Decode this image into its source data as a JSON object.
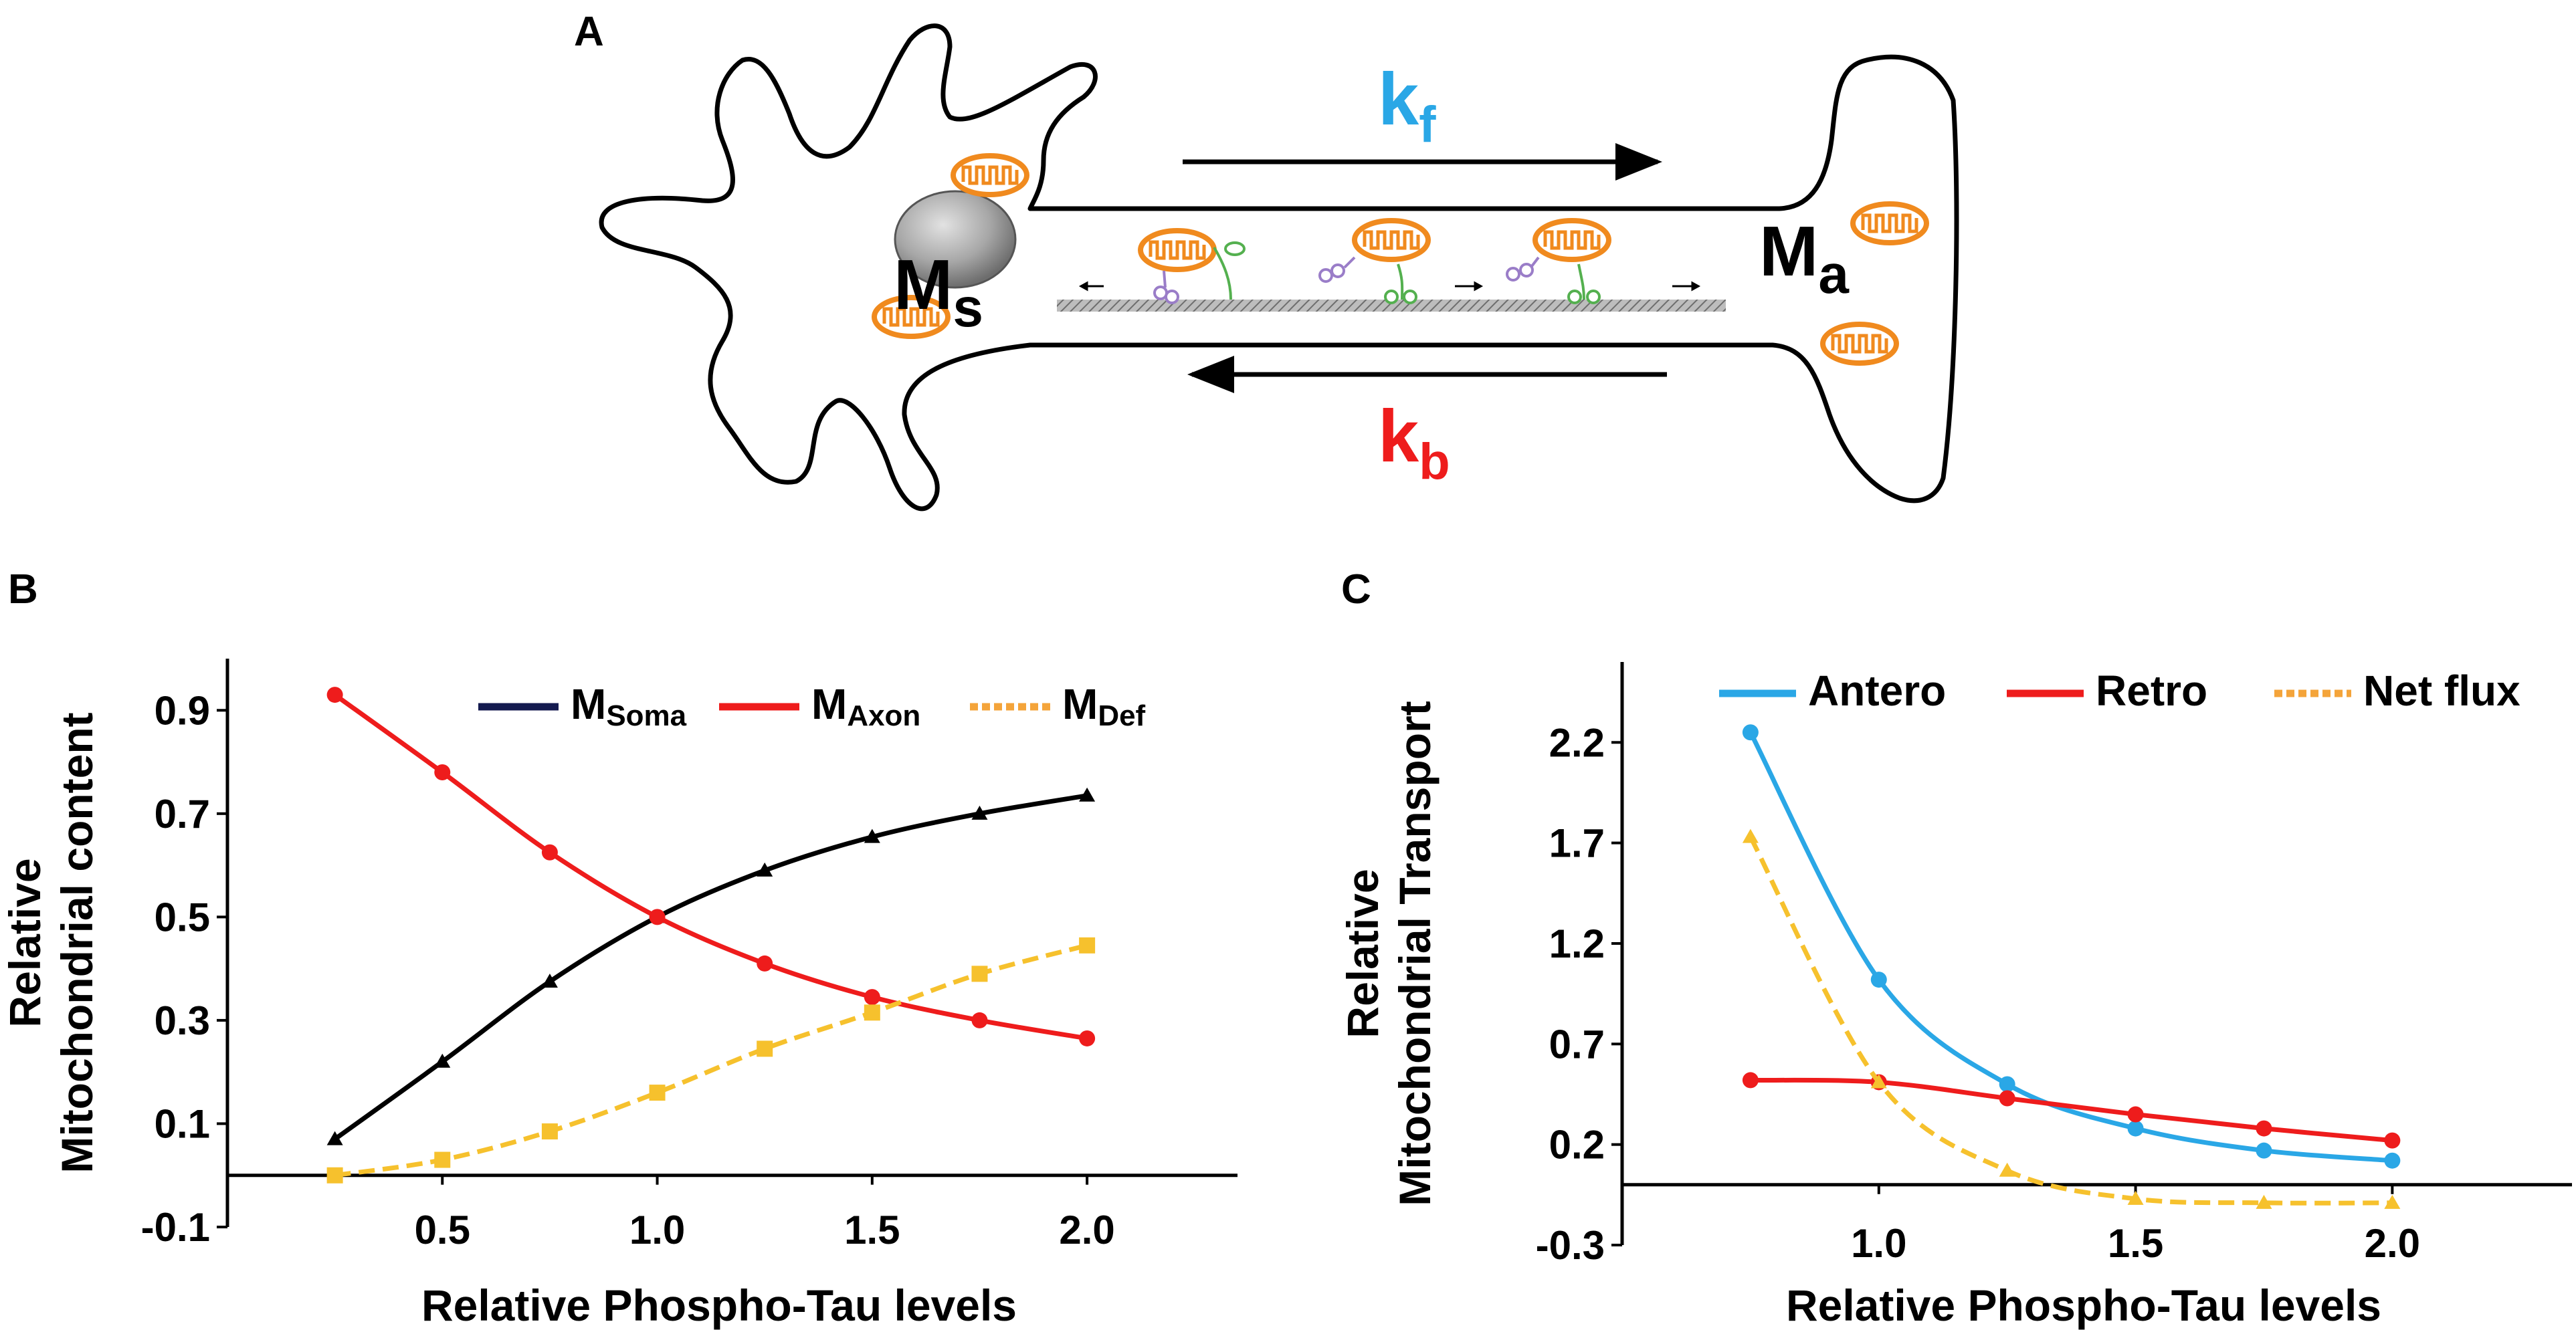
{
  "panels": {
    "a": {
      "letter": "A"
    },
    "b": {
      "letter": "B"
    },
    "c": {
      "letter": "C"
    }
  },
  "diagram": {
    "kf": {
      "main": "k",
      "sub": "f",
      "color": "#2aa7e6"
    },
    "kb": {
      "main": "k",
      "sub": "b",
      "color": "#ee1c1c"
    },
    "ms": {
      "main": "M",
      "sub": "s"
    },
    "ma": {
      "main": "M",
      "sub": "a"
    },
    "mito_color": "#f08a1e",
    "nucleus_color": "#a7a7a7",
    "motor_colors": {
      "kinesin": "#54b04f",
      "dynein": "#9a7dc8"
    }
  },
  "chart_data": [
    {
      "type": "line",
      "xlabel": "Relative Phospho-Tau levels",
      "ylabel": [
        "Relative",
        "Mitochondrial content"
      ],
      "xlim": [
        0.0,
        2.35
      ],
      "ylim": [
        -0.1,
        1.0
      ],
      "xticks": [
        "0.5",
        "1.0",
        "1.5",
        "2.0"
      ],
      "xtick_values": [
        0.5,
        1.0,
        1.5,
        2.0
      ],
      "yticks": [
        "-0.1",
        "0.1",
        "0.3",
        "0.5",
        "0.7",
        "0.9"
      ],
      "ytick_values": [
        -0.1,
        0.1,
        0.3,
        0.5,
        0.7,
        0.9
      ],
      "legend_position": "top-right",
      "x": [
        0.25,
        0.5,
        0.75,
        1.0,
        1.25,
        1.5,
        1.75,
        2.0
      ],
      "series": [
        {
          "name": "M",
          "sub": "Soma",
          "legend_color": "#141a4f",
          "color": "#000000",
          "marker": "triangle",
          "dashed": false,
          "values": [
            0.07,
            0.22,
            0.375,
            0.5,
            0.59,
            0.655,
            0.7,
            0.735
          ]
        },
        {
          "name": "M",
          "sub": "Axon",
          "legend_color": "#ee1c1c",
          "color": "#ee1c1c",
          "marker": "circle",
          "dashed": false,
          "values": [
            0.93,
            0.78,
            0.625,
            0.5,
            0.41,
            0.345,
            0.3,
            0.265
          ]
        },
        {
          "name": "M",
          "sub": "Def",
          "legend_color": "#f4a43a",
          "color": "#f6c12d",
          "marker": "square",
          "dashed": true,
          "values": [
            0.0,
            0.03,
            0.085,
            0.16,
            0.245,
            0.315,
            0.39,
            0.445
          ]
        }
      ]
    },
    {
      "type": "line",
      "xlabel": "Relative Phospho-Tau levels",
      "ylabel": [
        "Relative",
        "Mitochondrial Transport"
      ],
      "xlim": [
        0.5,
        2.35
      ],
      "ylim": [
        -0.3,
        2.6
      ],
      "xticks": [
        "1.0",
        "1.5",
        "2.0"
      ],
      "xtick_values": [
        1.0,
        1.5,
        2.0
      ],
      "yticks": [
        "-0.3",
        "0.2",
        "0.7",
        "1.2",
        "1.7",
        "2.2"
      ],
      "ytick_values": [
        -0.3,
        0.2,
        0.7,
        1.2,
        1.7,
        2.2
      ],
      "legend_position": "top-right",
      "x": [
        0.75,
        1.0,
        1.25,
        1.5,
        1.75,
        2.0
      ],
      "series": [
        {
          "name": "Antero",
          "legend_color": "#2aa7e6",
          "color": "#2aa7e6",
          "marker": "circle",
          "dashed": false,
          "values": [
            2.25,
            1.02,
            0.5,
            0.28,
            0.17,
            0.12
          ]
        },
        {
          "name": "Retro",
          "legend_color": "#ee1c1c",
          "color": "#ee1c1c",
          "marker": "circle",
          "dashed": false,
          "values": [
            0.52,
            0.51,
            0.43,
            0.35,
            0.28,
            0.22
          ]
        },
        {
          "name": "Net flux",
          "legend_color": "#f4a43a",
          "color": "#f6c12d",
          "marker": "triangle",
          "dashed": true,
          "values": [
            1.73,
            0.51,
            0.07,
            -0.07,
            -0.09,
            -0.09
          ]
        }
      ]
    }
  ]
}
